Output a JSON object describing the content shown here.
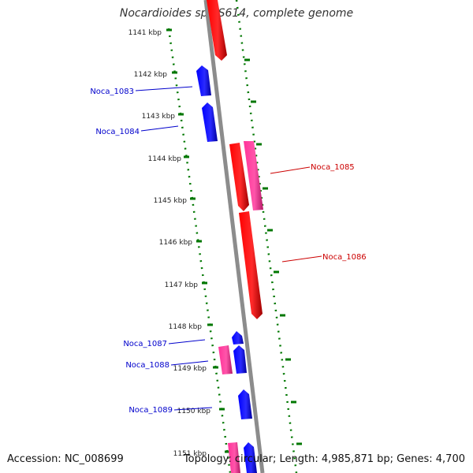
{
  "title": "Nocardioides sp. JS614, complete genome",
  "accession": "Accession: NC_008699",
  "summary": "Topology: circular; Length: 4,985,871 bp; Genes: 4,700",
  "ticks": [
    "1141 kbp",
    "1142 kbp",
    "1143 kbp",
    "1144 kbp",
    "1145 kbp",
    "1146 kbp",
    "1147 kbp",
    "1148 kbp",
    "1149 kbp",
    "1150 kbp",
    "1151 kbp"
  ],
  "colors": {
    "backbone": "#888888",
    "cds_forward": "#ff0000",
    "cds_reverse": "#0000ff",
    "gene_feature": "#ff3399",
    "ruler": "#007700",
    "label_forward": "#cc0000",
    "label_reverse": "#0000cc"
  },
  "genes": [
    {
      "name": "",
      "strand": "forward"
    },
    {
      "name": "Noca_1083",
      "strand": "reverse"
    },
    {
      "name": "Noca_1084",
      "strand": "reverse"
    },
    {
      "name": "Noca_1085",
      "strand": "forward"
    },
    {
      "name": "Noca_1086",
      "strand": "forward"
    },
    {
      "name": "Noca_1087",
      "strand": "reverse"
    },
    {
      "name": "Noca_1088",
      "strand": "reverse"
    },
    {
      "name": "Noca_1089",
      "strand": "reverse"
    }
  ]
}
